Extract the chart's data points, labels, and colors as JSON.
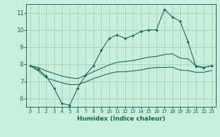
{
  "x_values": [
    0,
    1,
    2,
    3,
    4,
    5,
    6,
    7,
    8,
    9,
    10,
    11,
    12,
    13,
    14,
    15,
    16,
    17,
    18,
    19,
    20,
    21,
    22,
    23
  ],
  "line_main": [
    7.9,
    7.7,
    7.3,
    6.6,
    5.7,
    5.6,
    6.6,
    7.35,
    7.9,
    8.8,
    9.5,
    9.7,
    9.5,
    9.65,
    9.9,
    10.0,
    10.0,
    11.2,
    10.75,
    10.5,
    9.3,
    7.85,
    7.8,
    7.9
  ],
  "line_top": [
    7.9,
    7.8,
    7.6,
    7.45,
    7.3,
    7.2,
    7.15,
    7.35,
    7.55,
    7.75,
    7.95,
    8.1,
    8.15,
    8.2,
    8.3,
    8.4,
    8.45,
    8.55,
    8.6,
    8.35,
    8.3,
    7.9,
    7.8,
    7.9
  ],
  "line_bot": [
    7.9,
    7.6,
    7.2,
    7.05,
    6.9,
    6.8,
    6.8,
    6.95,
    7.15,
    7.3,
    7.45,
    7.55,
    7.55,
    7.6,
    7.65,
    7.75,
    7.8,
    7.8,
    7.82,
    7.65,
    7.62,
    7.52,
    7.52,
    7.62
  ],
  "bg_color": "#c8eedd",
  "grid_color": "#a0c8b8",
  "line_color": "#1a6655",
  "xlabel": "Humidex (Indice chaleur)",
  "xlim": [
    -0.5,
    23.5
  ],
  "ylim": [
    5.5,
    11.5
  ],
  "yticks": [
    6,
    7,
    8,
    9,
    10,
    11
  ],
  "xticks": [
    0,
    1,
    2,
    3,
    4,
    5,
    6,
    7,
    8,
    9,
    10,
    11,
    12,
    13,
    14,
    15,
    16,
    17,
    18,
    19,
    20,
    21,
    22,
    23
  ],
  "marker": "D",
  "markersize": 2.2,
  "linewidth": 0.8
}
